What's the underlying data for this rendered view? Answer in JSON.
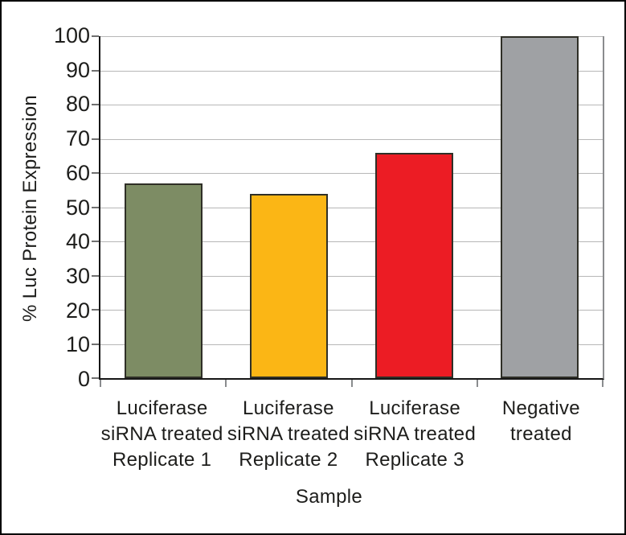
{
  "figure": {
    "background": "#ffffff",
    "border_color": "#000000",
    "text_color": "#1d1d1b"
  },
  "chart_data": {
    "type": "bar",
    "title": "",
    "xlabel": "Sample",
    "ylabel": "% Luc Protein Expression",
    "categories": [
      "Luciferase siRNA treated Replicate 1",
      "Luciferase siRNA treated Replicate 2",
      "Luciferase siRNA treated Replicate 3",
      "Negative treated"
    ],
    "category_lines": [
      [
        "Luciferase",
        "siRNA treated",
        "Replicate 1"
      ],
      [
        "Luciferase",
        "siRNA treated",
        "Replicate 2"
      ],
      [
        "Luciferase",
        "siRNA treated",
        "Replicate 3"
      ],
      [
        "Negative",
        "treated"
      ]
    ],
    "values": [
      57,
      54,
      66,
      100
    ],
    "bar_colors": [
      "#7d8c64",
      "#fbb615",
      "#ec1c24",
      "#9fa1a4"
    ],
    "bar_border_color": "#2f2f27",
    "ylim": [
      0,
      100
    ],
    "yticks": [
      0,
      10,
      20,
      30,
      40,
      50,
      60,
      70,
      80,
      90,
      100
    ],
    "grid": true,
    "gridline_color": "#b7b7b7",
    "legend": "none"
  }
}
